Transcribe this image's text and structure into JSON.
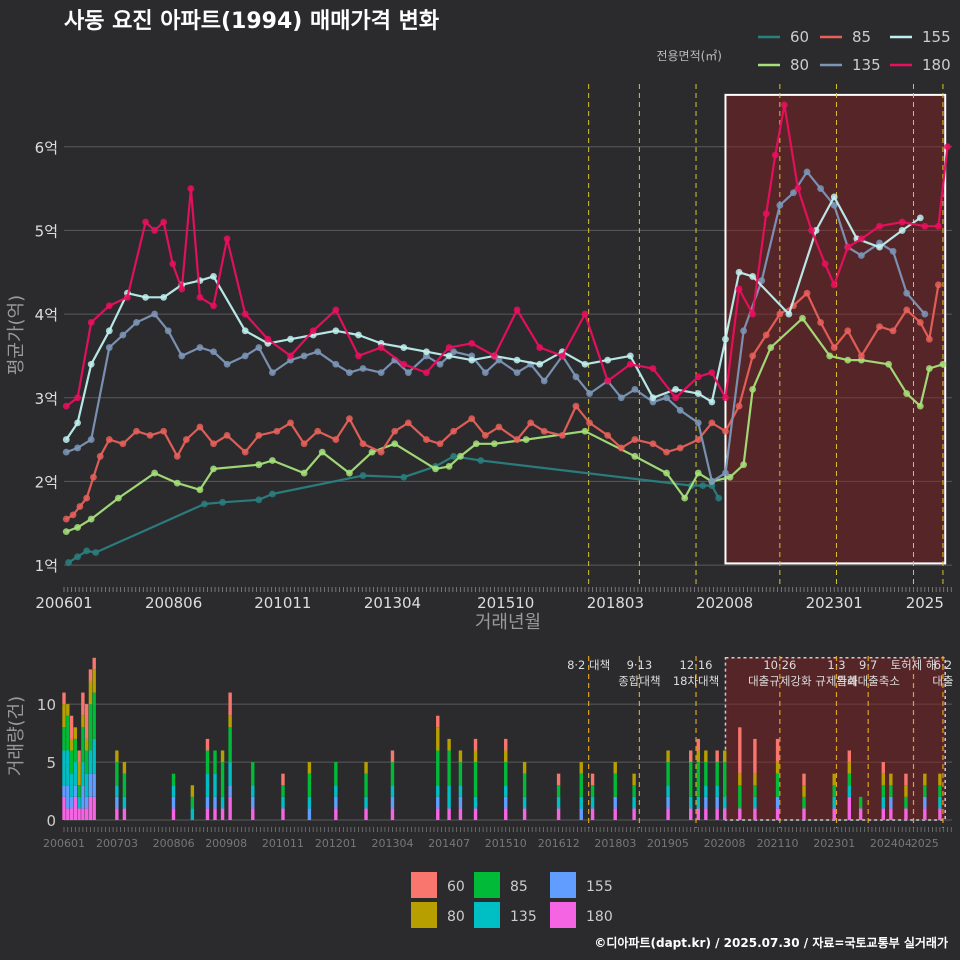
{
  "title": "사동 요진 아파트(1994) 매매가격 변화",
  "legend": {
    "title": "전용면적(㎡)",
    "entries": [
      {
        "label": "60",
        "color": "#2a7f7f"
      },
      {
        "label": "80",
        "color": "#a6e07a"
      },
      {
        "label": "85",
        "color": "#e8605a"
      },
      {
        "label": "135",
        "color": "#7d96b8"
      },
      {
        "label": "155",
        "color": "#bff0f0"
      },
      {
        "label": "180",
        "color": "#ea0f5e"
      }
    ]
  },
  "bar_legend": {
    "entries": [
      {
        "label": "60",
        "color": "#f8766d"
      },
      {
        "label": "80",
        "color": "#b79f00"
      },
      {
        "label": "85",
        "color": "#00ba38"
      },
      {
        "label": "135",
        "color": "#00bfc4"
      },
      {
        "label": "155",
        "color": "#619cff"
      },
      {
        "label": "180",
        "color": "#f564e3"
      }
    ]
  },
  "footer": "©디아파트(dapt.kr) / 2025.07.30 / 자료=국토교통부 실거래가",
  "chart_data": [
    {
      "type": "line",
      "title": "사동 요진 아파트(1994) 매매가격 변화",
      "xlabel": "거래년월",
      "ylabel": "평균가(억)",
      "xlim": [
        2006.0,
        2025.6
      ],
      "ylim": [
        0.75,
        6.75
      ],
      "x_ticks": [
        "200601",
        "200806",
        "201011",
        "201304",
        "201510",
        "201803",
        "202008",
        "202301",
        "2025"
      ],
      "x_tick_values": [
        2006.0,
        2008.42,
        2010.83,
        2013.25,
        2015.75,
        2018.17,
        2020.58,
        2023.0,
        2025.0
      ],
      "y_ticks": [
        "1억",
        "2억",
        "3억",
        "4억",
        "5억",
        "6억"
      ],
      "y_tick_values": [
        1,
        2,
        3,
        4,
        5,
        6
      ],
      "policy_lines": [
        2017.58,
        2018.7,
        2019.95,
        2021.8,
        2023.05,
        2024.75,
        2025.4
      ],
      "highlight_range": [
        2020.6,
        2025.45
      ],
      "series": [
        {
          "name": "60",
          "x": [
            2006.1,
            2006.3,
            2006.5,
            2006.7,
            2009.1,
            2009.5,
            2010.3,
            2010.6,
            2012.6,
            2013.5,
            2014.2,
            2014.6,
            2015.2,
            2019.85,
            2020.1,
            2020.3,
            2020.45
          ],
          "y": [
            1.03,
            1.1,
            1.17,
            1.15,
            1.73,
            1.75,
            1.78,
            1.85,
            2.07,
            2.05,
            2.18,
            2.3,
            2.25,
            1.95,
            1.95,
            1.95,
            1.8
          ]
        },
        {
          "name": "80",
          "x": [
            2006.05,
            2006.3,
            2006.6,
            2007.2,
            2008.0,
            2008.5,
            2009.0,
            2009.3,
            2010.3,
            2010.6,
            2011.3,
            2011.7,
            2012.3,
            2012.8,
            2013.3,
            2014.2,
            2014.5,
            2014.75,
            2015.1,
            2015.5,
            2016.2,
            2017.5,
            2018.6,
            2019.3,
            2019.7,
            2020.0,
            2020.3,
            2020.7,
            2021.0,
            2021.2,
            2021.6,
            2022.3,
            2022.9,
            2023.3,
            2023.6,
            2024.2,
            2024.6,
            2024.9,
            2025.1,
            2025.4
          ],
          "y": [
            1.4,
            1.45,
            1.55,
            1.8,
            2.1,
            1.98,
            1.9,
            2.15,
            2.2,
            2.25,
            2.1,
            2.35,
            2.1,
            2.35,
            2.45,
            2.15,
            2.18,
            2.3,
            2.45,
            2.45,
            2.5,
            2.6,
            2.3,
            2.1,
            1.8,
            2.1,
            2.0,
            2.05,
            2.2,
            3.1,
            3.6,
            3.95,
            3.5,
            3.45,
            3.45,
            3.4,
            3.05,
            2.9,
            3.35,
            3.4
          ]
        },
        {
          "name": "85",
          "x": [
            2006.05,
            2006.2,
            2006.35,
            2006.5,
            2006.65,
            2006.8,
            2007.0,
            2007.3,
            2007.6,
            2007.9,
            2008.2,
            2008.5,
            2008.7,
            2009.0,
            2009.3,
            2009.6,
            2010.0,
            2010.3,
            2010.7,
            2011.0,
            2011.3,
            2011.6,
            2012.0,
            2012.3,
            2012.6,
            2013.0,
            2013.3,
            2013.6,
            2014.0,
            2014.3,
            2014.6,
            2015.0,
            2015.3,
            2015.6,
            2016.0,
            2016.3,
            2016.6,
            2017.0,
            2017.3,
            2017.6,
            2018.0,
            2018.3,
            2018.6,
            2019.0,
            2019.3,
            2019.6,
            2020.0,
            2020.3,
            2020.6,
            2020.9,
            2021.2,
            2021.5,
            2021.8,
            2022.1,
            2022.4,
            2022.7,
            2023.0,
            2023.3,
            2023.6,
            2024.0,
            2024.3,
            2024.6,
            2024.9,
            2025.1,
            2025.3
          ],
          "y": [
            1.55,
            1.6,
            1.7,
            1.8,
            2.05,
            2.3,
            2.5,
            2.45,
            2.6,
            2.55,
            2.6,
            2.3,
            2.5,
            2.65,
            2.45,
            2.55,
            2.35,
            2.55,
            2.6,
            2.7,
            2.45,
            2.6,
            2.5,
            2.75,
            2.45,
            2.35,
            2.6,
            2.7,
            2.5,
            2.45,
            2.6,
            2.75,
            2.55,
            2.65,
            2.5,
            2.7,
            2.6,
            2.55,
            2.9,
            2.7,
            2.55,
            2.4,
            2.5,
            2.45,
            2.35,
            2.4,
            2.5,
            2.7,
            2.6,
            2.9,
            3.5,
            3.75,
            4.0,
            4.1,
            4.25,
            3.9,
            3.6,
            3.8,
            3.5,
            3.85,
            3.8,
            4.05,
            3.9,
            3.7,
            4.35
          ]
        },
        {
          "name": "135",
          "x": [
            2006.05,
            2006.3,
            2006.6,
            2007.0,
            2007.3,
            2007.6,
            2008.0,
            2008.3,
            2008.6,
            2009.0,
            2009.3,
            2009.6,
            2010.0,
            2010.3,
            2010.6,
            2011.0,
            2011.3,
            2011.6,
            2012.0,
            2012.3,
            2012.6,
            2013.0,
            2013.3,
            2013.6,
            2014.0,
            2014.3,
            2014.6,
            2015.0,
            2015.3,
            2015.6,
            2016.0,
            2016.3,
            2016.6,
            2017.0,
            2017.3,
            2017.6,
            2018.0,
            2018.3,
            2018.6,
            2019.0,
            2019.3,
            2019.6,
            2020.0,
            2020.3,
            2020.6,
            2021.0,
            2021.4,
            2021.8,
            2022.1,
            2022.4,
            2022.7,
            2023.0,
            2023.3,
            2023.6,
            2024.0,
            2024.3,
            2024.6,
            2025.0
          ],
          "y": [
            2.35,
            2.4,
            2.5,
            3.6,
            3.75,
            3.9,
            4.0,
            3.8,
            3.5,
            3.6,
            3.55,
            3.4,
            3.5,
            3.6,
            3.3,
            3.45,
            3.5,
            3.55,
            3.4,
            3.3,
            3.35,
            3.3,
            3.45,
            3.3,
            3.5,
            3.4,
            3.55,
            3.5,
            3.3,
            3.45,
            3.3,
            3.4,
            3.2,
            3.5,
            3.25,
            3.05,
            3.2,
            3.0,
            3.1,
            2.95,
            3.0,
            2.85,
            2.7,
            2.0,
            2.1,
            3.8,
            4.4,
            5.3,
            5.45,
            5.7,
            5.5,
            5.3,
            4.8,
            4.7,
            4.85,
            4.75,
            4.25,
            4.0
          ]
        },
        {
          "name": "155",
          "x": [
            2006.05,
            2006.3,
            2006.6,
            2007.0,
            2007.4,
            2007.8,
            2008.2,
            2008.6,
            2009.0,
            2009.3,
            2010.0,
            2010.5,
            2011.0,
            2011.5,
            2012.0,
            2012.5,
            2013.0,
            2013.5,
            2014.0,
            2014.5,
            2015.0,
            2015.5,
            2016.0,
            2016.5,
            2017.0,
            2017.5,
            2018.0,
            2018.5,
            2019.0,
            2019.5,
            2020.0,
            2020.3,
            2020.6,
            2020.9,
            2021.2,
            2022.0,
            2022.6,
            2023.0,
            2023.5,
            2024.0,
            2024.5,
            2024.9
          ],
          "y": [
            2.5,
            2.7,
            3.4,
            3.8,
            4.25,
            4.2,
            4.2,
            4.35,
            4.4,
            4.45,
            3.8,
            3.65,
            3.7,
            3.75,
            3.8,
            3.75,
            3.65,
            3.6,
            3.55,
            3.5,
            3.45,
            3.5,
            3.45,
            3.4,
            3.55,
            3.4,
            3.45,
            3.5,
            3.0,
            3.1,
            3.05,
            2.95,
            3.7,
            4.5,
            4.45,
            4.0,
            5.0,
            5.4,
            4.9,
            4.8,
            5.0,
            5.15
          ]
        },
        {
          "name": "180",
          "x": [
            2006.05,
            2006.3,
            2006.6,
            2007.0,
            2007.4,
            2007.8,
            2008.0,
            2008.2,
            2008.4,
            2008.6,
            2008.8,
            2009.0,
            2009.3,
            2009.6,
            2010.0,
            2010.5,
            2011.0,
            2011.5,
            2012.0,
            2012.5,
            2013.0,
            2013.5,
            2014.0,
            2014.5,
            2015.0,
            2015.5,
            2016.0,
            2016.5,
            2017.0,
            2017.5,
            2018.0,
            2018.5,
            2019.0,
            2019.5,
            2020.0,
            2020.3,
            2020.6,
            2020.9,
            2021.2,
            2021.5,
            2021.7,
            2021.9,
            2022.2,
            2022.5,
            2022.8,
            2023.0,
            2023.3,
            2023.6,
            2024.0,
            2024.5,
            2025.0,
            2025.3,
            2025.5
          ],
          "y": [
            2.9,
            3.0,
            3.9,
            4.1,
            4.2,
            5.1,
            5.0,
            5.1,
            4.6,
            4.3,
            5.5,
            4.2,
            4.1,
            4.9,
            4.0,
            3.7,
            3.5,
            3.8,
            4.05,
            3.5,
            3.6,
            3.4,
            3.3,
            3.6,
            3.65,
            3.5,
            4.05,
            3.6,
            3.5,
            4.0,
            3.2,
            3.4,
            3.35,
            3.0,
            3.25,
            3.3,
            3.0,
            4.3,
            4.0,
            5.2,
            5.9,
            6.5,
            5.5,
            5.0,
            4.6,
            4.35,
            4.8,
            4.9,
            5.05,
            5.1,
            5.05,
            5.05,
            6.0
          ]
        }
      ]
    },
    {
      "type": "bar",
      "ylabel": "거래량(건)",
      "ylim": [
        0,
        14.5
      ],
      "y_ticks": [
        "0",
        "5",
        "10"
      ],
      "y_tick_values": [
        0,
        5,
        10
      ],
      "x_ticks": [
        "200601",
        "200703",
        "200806",
        "200908",
        "201011",
        "201201",
        "201304",
        "201407",
        "201510",
        "201612",
        "201803",
        "201905",
        "202008",
        "202110",
        "202301",
        "202404",
        "2025"
      ],
      "x_tick_values": [
        2006.0,
        2007.17,
        2008.42,
        2009.58,
        2010.83,
        2012.0,
        2013.25,
        2014.5,
        2015.75,
        2016.92,
        2018.17,
        2019.33,
        2020.58,
        2021.75,
        2023.0,
        2024.25,
        2025.0
      ],
      "highlight_range": [
        2020.6,
        2025.45
      ],
      "annotations": [
        {
          "x": 2017.58,
          "text": "8·2 대책"
        },
        {
          "x": 2018.7,
          "text": "9·13\n종합대책"
        },
        {
          "x": 2019.95,
          "text": "12·16\n18차대책"
        },
        {
          "x": 2021.8,
          "text": "10·26\n대출규제강화"
        },
        {
          "x": 2023.05,
          "text": "1·3\n규제완화"
        },
        {
          "x": 2023.75,
          "text": "9·7\n특례대출축소"
        },
        {
          "x": 2024.75,
          "text": "토허제 해"
        },
        {
          "x": 2025.4,
          "text": "6·2\n대출"
        }
      ],
      "series_order": [
        "180",
        "155",
        "135",
        "85",
        "80",
        "60"
      ],
      "months": [
        "2006-01",
        "2006-02",
        "2006-03",
        "2006-04",
        "2006-05",
        "2006-06",
        "2006-07",
        "2006-08",
        "2006-09",
        "2007-03",
        "2007-05",
        "2008-06",
        "2008-11",
        "2009-03",
        "2009-05",
        "2009-07",
        "2009-09",
        "2010-03",
        "2010-11",
        "2011-06",
        "2012-01",
        "2012-09",
        "2013-04",
        "2014-04",
        "2014-07",
        "2014-10",
        "2015-02",
        "2015-10",
        "2016-03",
        "2016-12",
        "2017-06",
        "2017-09",
        "2018-03",
        "2018-08",
        "2019-05",
        "2019-11",
        "2020-01",
        "2020-03",
        "2020-06",
        "2020-08",
        "2020-12",
        "2021-04",
        "2021-10",
        "2022-05",
        "2023-01",
        "2023-05",
        "2023-08",
        "2024-02",
        "2024-04",
        "2024-08",
        "2025-01",
        "2025-05"
      ],
      "counts": {
        "60": [
          1,
          0,
          2,
          0,
          1,
          2,
          3,
          1,
          1,
          0,
          0,
          0,
          0,
          1,
          0,
          0,
          2,
          0,
          1,
          0,
          0,
          0,
          1,
          1,
          0,
          0,
          1,
          1,
          0,
          1,
          0,
          1,
          0,
          0,
          0,
          1,
          1,
          0,
          1,
          0,
          4,
          3,
          2,
          1,
          0,
          1,
          0,
          1,
          0,
          1,
          0,
          0
        ],
        "80": [
          2,
          1,
          1,
          1,
          2,
          1,
          1,
          2,
          2,
          1,
          1,
          0,
          1,
          0,
          0,
          1,
          1,
          0,
          0,
          1,
          0,
          1,
          0,
          2,
          1,
          1,
          1,
          1,
          1,
          0,
          1,
          0,
          1,
          1,
          1,
          0,
          1,
          1,
          0,
          1,
          1,
          1,
          1,
          1,
          1,
          1,
          0,
          1,
          1,
          1,
          1,
          1
        ],
        "85": [
          2,
          3,
          2,
          2,
          1,
          3,
          2,
          4,
          4,
          2,
          2,
          1,
          1,
          2,
          2,
          3,
          3,
          2,
          1,
          2,
          2,
          2,
          2,
          3,
          3,
          2,
          3,
          2,
          2,
          1,
          2,
          1,
          2,
          1,
          2,
          3,
          3,
          2,
          2,
          3,
          2,
          1,
          2,
          1,
          1,
          1,
          1,
          1,
          1,
          1,
          1,
          1
        ],
        "135": [
          3,
          3,
          2,
          2,
          1,
          2,
          2,
          2,
          3,
          1,
          1,
          1,
          1,
          2,
          2,
          1,
          2,
          1,
          1,
          1,
          1,
          1,
          1,
          1,
          2,
          1,
          1,
          1,
          1,
          1,
          1,
          1,
          0,
          1,
          1,
          1,
          1,
          1,
          1,
          1,
          0,
          1,
          0,
          0,
          1,
          1,
          0,
          1,
          0,
          0,
          0,
          1
        ],
        "155": [
          1,
          2,
          1,
          1,
          0,
          2,
          1,
          2,
          2,
          1,
          0,
          1,
          0,
          1,
          1,
          0,
          1,
          1,
          0,
          1,
          1,
          0,
          1,
          1,
          0,
          1,
          0,
          1,
          0,
          0,
          1,
          0,
          1,
          0,
          1,
          0,
          0,
          1,
          1,
          0,
          0,
          0,
          1,
          0,
          0,
          0,
          0,
          0,
          1,
          0,
          1,
          0
        ],
        "180": [
          2,
          1,
          1,
          2,
          1,
          1,
          1,
          2,
          2,
          1,
          1,
          1,
          0,
          1,
          1,
          1,
          2,
          1,
          1,
          0,
          1,
          1,
          1,
          1,
          1,
          1,
          1,
          1,
          1,
          1,
          0,
          1,
          1,
          1,
          1,
          1,
          1,
          1,
          1,
          1,
          1,
          1,
          1,
          1,
          1,
          2,
          1,
          1,
          1,
          1,
          1,
          1
        ]
      }
    }
  ]
}
